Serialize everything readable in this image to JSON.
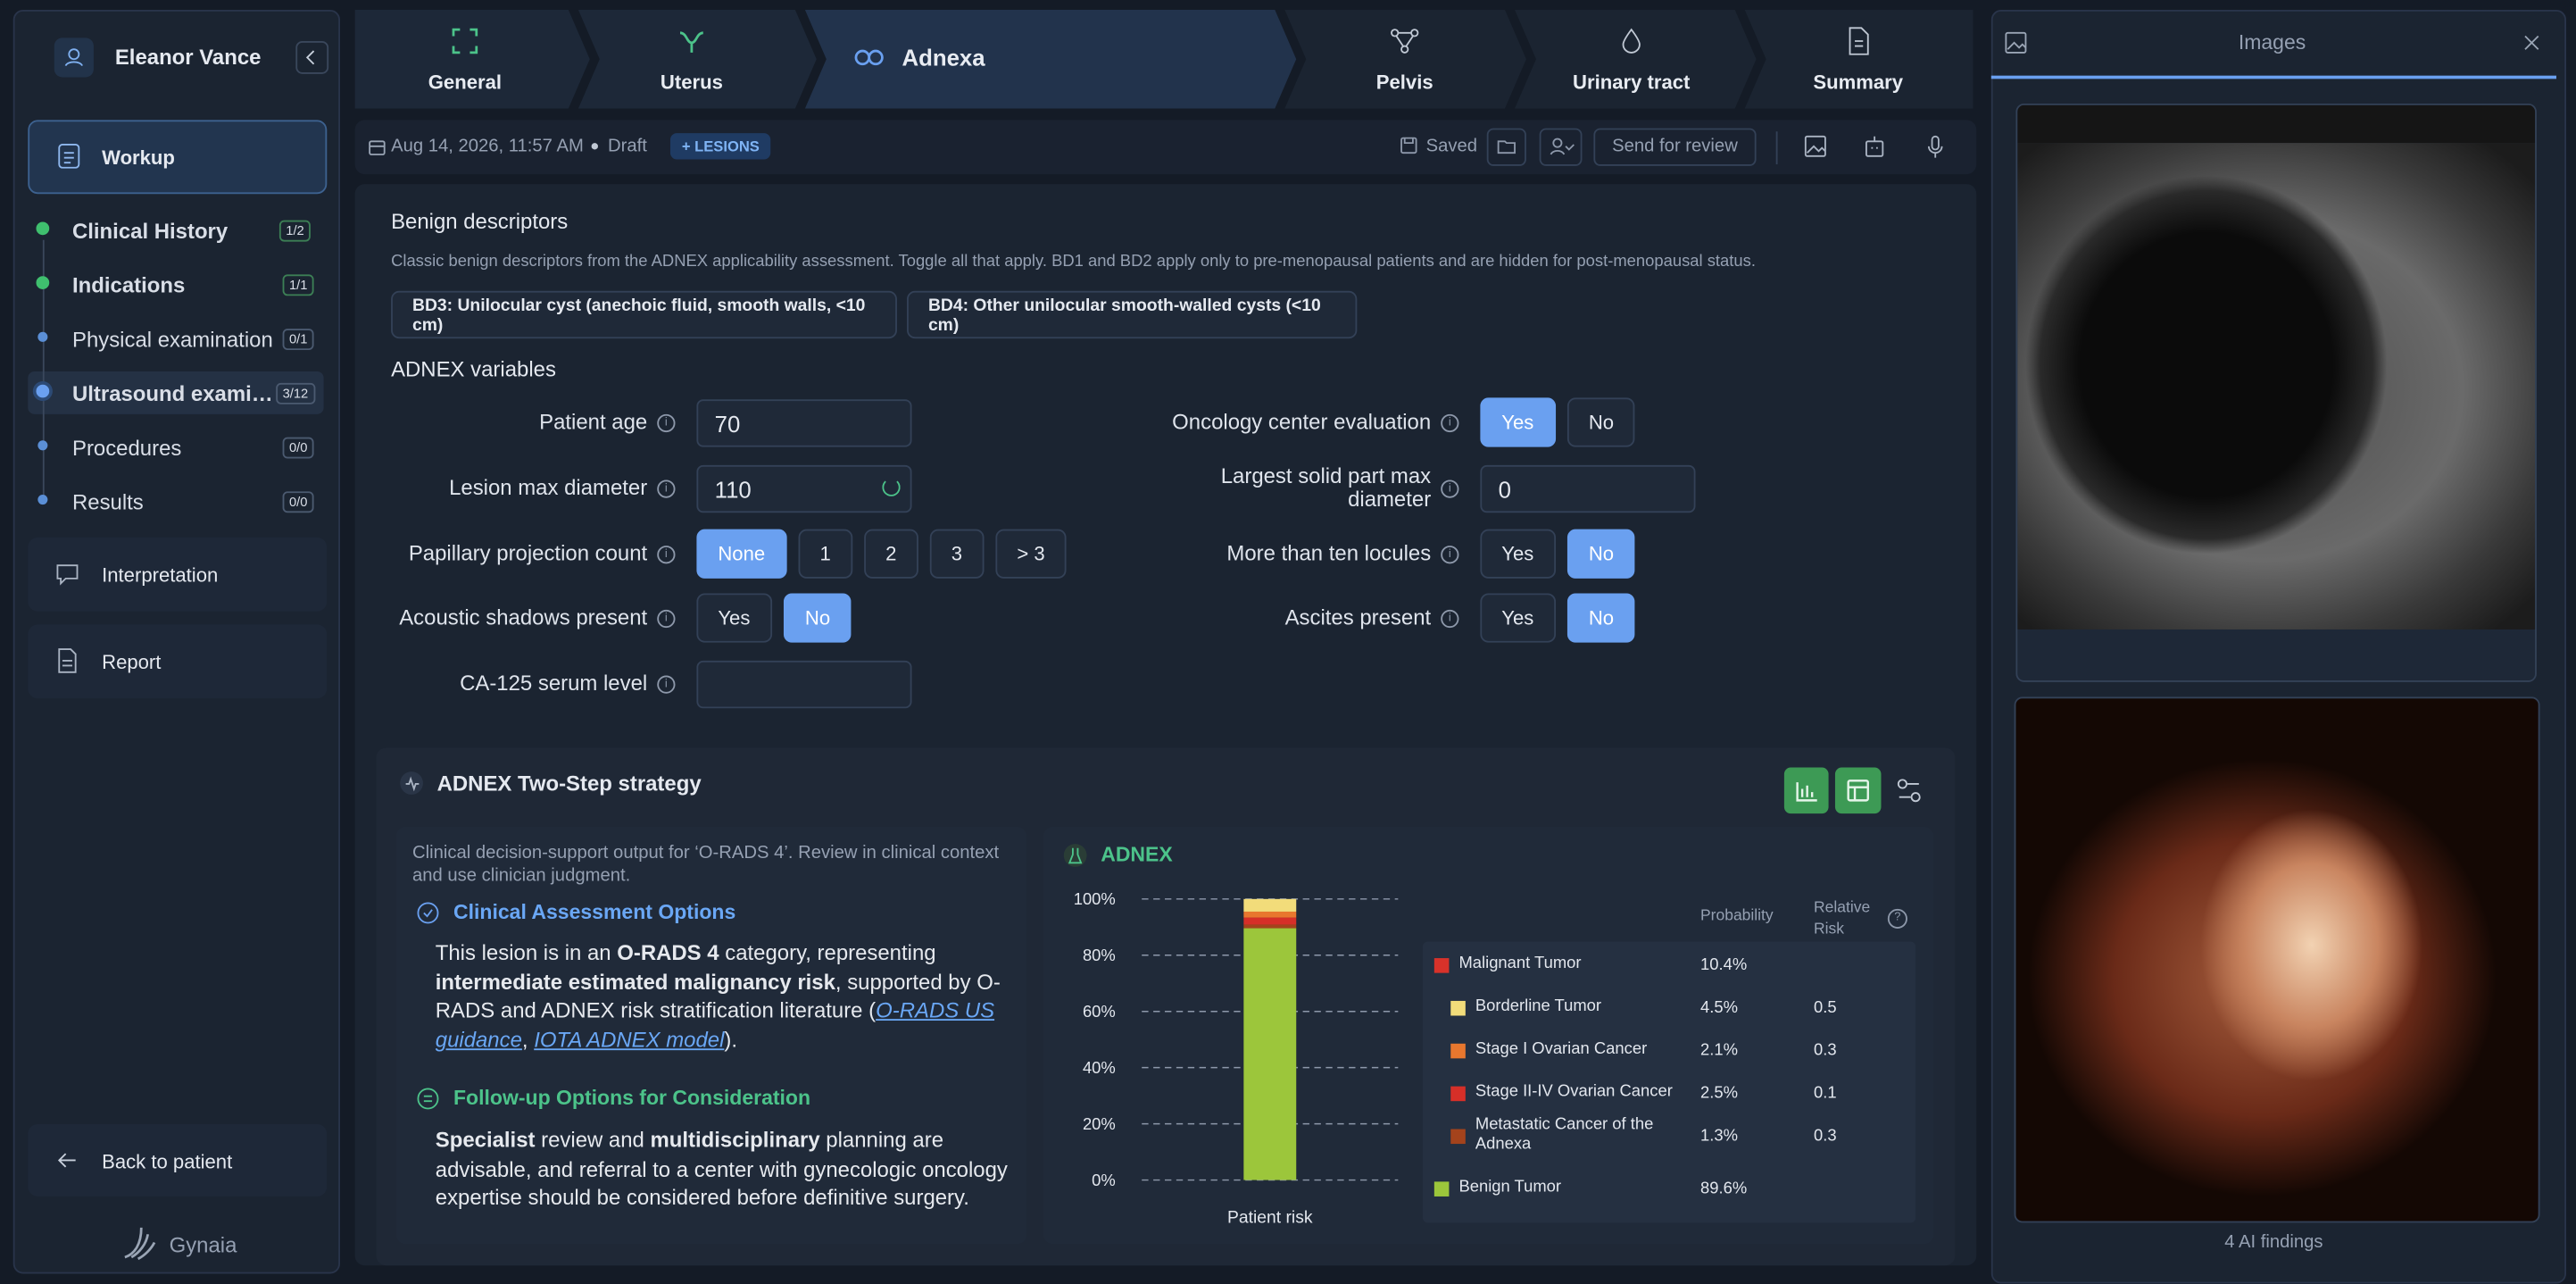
{
  "sidebar": {
    "user": "Eleanor Vance",
    "workup": "Workup",
    "steps": [
      {
        "label": "Clinical History",
        "progress": "1/2"
      },
      {
        "label": "Indications",
        "progress": "1/1"
      },
      {
        "label": "Physical examination",
        "progress": "0/1"
      },
      {
        "label": "Ultrasound exami…",
        "progress": "3/12"
      },
      {
        "label": "Procedures",
        "progress": "0/0"
      },
      {
        "label": "Results",
        "progress": "0/0"
      }
    ],
    "interpretation": "Interpretation",
    "report": "Report",
    "back": "Back to patient",
    "brand": "Gynaia"
  },
  "tabs": [
    "General",
    "Uterus",
    "Adnexa",
    "Pelvis",
    "Urinary tract",
    "Summary"
  ],
  "toolbar": {
    "date": "Aug 14, 2026, 11:57 AM",
    "status": "Draft",
    "lesions": "+ LESIONS",
    "saved": "Saved",
    "send": "Send for review"
  },
  "benign_descriptors": {
    "title": "Benign descriptors",
    "description": "Classic benign descriptors from the ADNEX applicability assessment. Toggle all that apply. BD1 and BD2 apply only to pre-menopausal patients and are hidden for post-menopausal status.",
    "options": [
      "BD3: Unilocular cyst (anechoic fluid, smooth walls, <10 cm)",
      "BD4: Other unilocular smooth-walled cysts (<10 cm)"
    ]
  },
  "adnex_variables": {
    "title": "ADNEX variables",
    "left": [
      {
        "label": "Patient age",
        "value": 70
      },
      {
        "label": "Lesion max diameter",
        "value": 110
      },
      {
        "label": "Papillary projection count",
        "options": [
          "None",
          "1",
          "2",
          "3",
          "> 3"
        ],
        "selected": 0
      },
      {
        "label": "Acoustic shadows present",
        "options": [
          "Yes",
          "No"
        ],
        "selected": 1
      },
      {
        "label": "CA-125 serum level"
      }
    ],
    "right": [
      {
        "label": "Oncology center evaluation",
        "options": [
          "Yes",
          "No"
        ],
        "selected": 0
      },
      {
        "label": "Largest solid part max diameter",
        "value": 0
      },
      {
        "label": "More than ten locules",
        "options": [
          "Yes",
          "No"
        ],
        "selected": 1
      },
      {
        "label": "Ascites present",
        "options": [
          "Yes",
          "No"
        ],
        "selected": 1
      }
    ]
  },
  "strategy": {
    "title": "ADNEX Two-Step strategy",
    "disclaimer": "Clinical decision-support output for ‘O-RADS 4’. Review in clinical context and use clinician judgment.",
    "assessment": {
      "heading": "Clinical Assessment Options",
      "parts": [
        {
          "text": "This lesion is in an "
        },
        {
          "text": "O-RADS 4",
          "style": "bold"
        },
        {
          "text": " category, representing "
        },
        {
          "text": "intermediate estimated malignancy risk",
          "style": "bold"
        },
        {
          "text": ", supported by O-RADS and ADNEX risk stratification literature ("
        },
        {
          "text": "O-RADS US guidance",
          "style": "link"
        },
        {
          "text": ", "
        },
        {
          "text": "IOTA ADNEX model",
          "style": "link"
        },
        {
          "text": ")."
        }
      ]
    },
    "followup": {
      "heading": "Follow-up Options for Consideration",
      "parts": [
        {
          "text": "Specialist",
          "style": "bold"
        },
        {
          "text": " review and "
        },
        {
          "text": "multidisciplinary",
          "style": "bold"
        },
        {
          "text": " planning are advisable, and referral to a center with gynecologic oncology expertise should be considered before definitive surgery."
        }
      ]
    }
  },
  "chart_data": {
    "type": "bar",
    "stacked": true,
    "title": "ADNEX",
    "categories": [
      "Patient risk"
    ],
    "columns": [
      "Probability",
      "Relative Risk"
    ],
    "total": {
      "name": "Malignant Tumor",
      "color": "#d8322a",
      "values": [
        10.4
      ],
      "value_labels": [
        "10.4%"
      ]
    },
    "series": [
      {
        "name": "Borderline Tumor",
        "color": "#f2dc7a",
        "values": [
          4.5
        ],
        "value_labels": [
          "4.5%"
        ],
        "relative_risk": 0.5
      },
      {
        "name": "Stage I Ovarian Cancer",
        "color": "#e8772e",
        "values": [
          2.1
        ],
        "value_labels": [
          "2.1%"
        ],
        "relative_risk": 0.3
      },
      {
        "name": "Stage II-IV Ovarian Cancer",
        "color": "#d62f28",
        "values": [
          2.5
        ],
        "value_labels": [
          "2.5%"
        ],
        "relative_risk": 0.1
      },
      {
        "name": "Metastatic Cancer of the Adnexa",
        "color": "#a4431c",
        "values": [
          1.3
        ],
        "value_labels": [
          "1.3%"
        ],
        "relative_risk": 0.3
      },
      {
        "name": "Benign Tumor",
        "color": "#9cc63b",
        "values": [
          89.6
        ],
        "value_labels": [
          "89.6%"
        ]
      }
    ],
    "ylim": [
      0,
      100
    ],
    "yticks": [
      {
        "value": 0,
        "label": "0%"
      },
      {
        "value": 20,
        "label": "20%"
      },
      {
        "value": 40,
        "label": "40%"
      },
      {
        "value": 60,
        "label": "60%"
      },
      {
        "value": 80,
        "label": "80%"
      },
      {
        "value": 100,
        "label": "100%"
      }
    ],
    "grid": true
  },
  "images": {
    "title": "Images",
    "footer": "4 AI findings"
  }
}
